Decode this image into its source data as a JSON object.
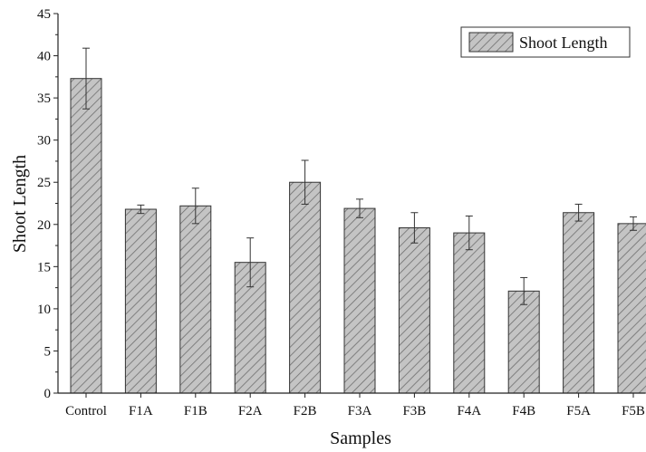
{
  "chart_data": {
    "type": "bar",
    "categories": [
      "Control",
      "F1A",
      "F1B",
      "F2A",
      "F2B",
      "F3A",
      "F3B",
      "F4A",
      "F4B",
      "F5A",
      "F5B"
    ],
    "values": [
      37.3,
      21.8,
      22.2,
      15.5,
      25.0,
      21.9,
      19.6,
      19.0,
      12.1,
      21.4,
      20.1
    ],
    "errors": [
      3.6,
      0.5,
      2.1,
      2.9,
      2.6,
      1.1,
      1.8,
      2.0,
      1.6,
      1.0,
      0.8
    ],
    "xlabel": "Samples",
    "ylabel": "Shoot Length",
    "ylim": [
      0,
      45
    ],
    "yticks": [
      0,
      5,
      10,
      15,
      20,
      25,
      30,
      35,
      40,
      45
    ],
    "legend": {
      "entries": [
        "Shoot Length"
      ],
      "position": "top-right"
    },
    "grid": false,
    "colors": {
      "bar_fill": "#c4c4c4",
      "hatch": "#6e6e6e",
      "bar_stroke": "#333333",
      "axis": "#222222"
    }
  }
}
